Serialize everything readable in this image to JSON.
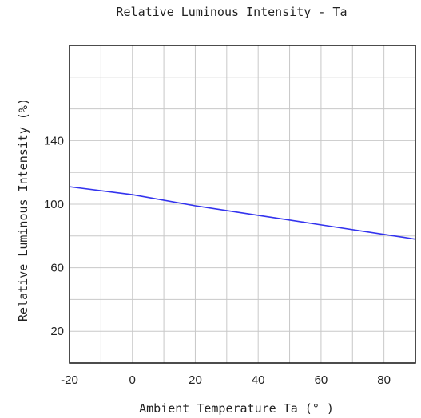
{
  "chart_data": {
    "type": "line",
    "title": "Relative Luminous Intensity - Ta",
    "xlabel": "Ambient Temperature Ta (°  )",
    "ylabel": "Relative Luminous Intensity (%)",
    "xlim": [
      -20,
      90
    ],
    "ylim": [
      0,
      200
    ],
    "x_ticks": [
      -20,
      0,
      20,
      40,
      60,
      80
    ],
    "y_ticks": [
      20,
      60,
      100,
      140
    ],
    "x_grid_step": 10,
    "y_grid_step": 20,
    "grid": true,
    "series": [
      {
        "color": "#3333ee",
        "x": [
          -20,
          0,
          20,
          40,
          60,
          80,
          90
        ],
        "y": [
          111,
          106,
          99,
          93,
          87,
          81,
          78
        ]
      }
    ]
  }
}
